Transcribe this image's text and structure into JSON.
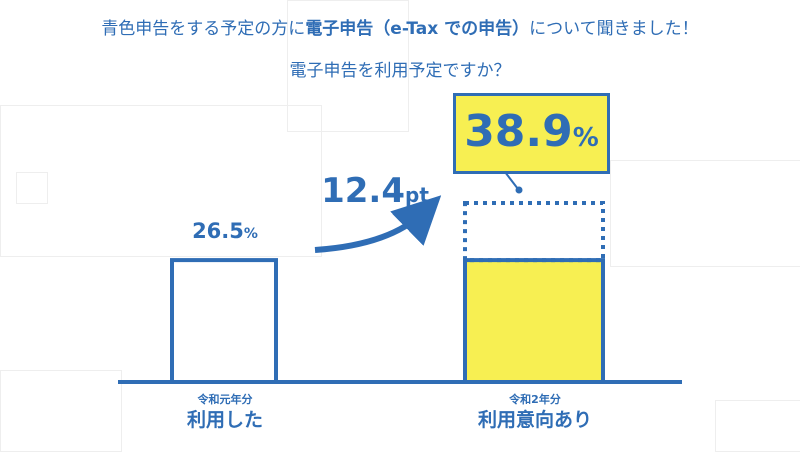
{
  "header": {
    "line1_a": "青色申告をする予定の方に",
    "line1_b": "電子申告（e-Tax での申告）",
    "line1_c": "について聞きました！",
    "line2": "電子申告を利用予定ですか？"
  },
  "colors": {
    "blue": "#2f6db5",
    "yellow": "#f7ef52"
  },
  "chart_data": {
    "type": "bar",
    "title": "電子申告を利用予定ですか？",
    "categories": [
      "利用した",
      "利用意向あり"
    ],
    "category_sublabels": [
      "令和元年分",
      "令和2年分"
    ],
    "values": [
      26.5,
      38.9
    ],
    "value_labels": [
      "26.5",
      "38.9"
    ],
    "unit": "%",
    "difference": {
      "value": 12.4,
      "label": "12.4",
      "unit": "pt"
    }
  }
}
